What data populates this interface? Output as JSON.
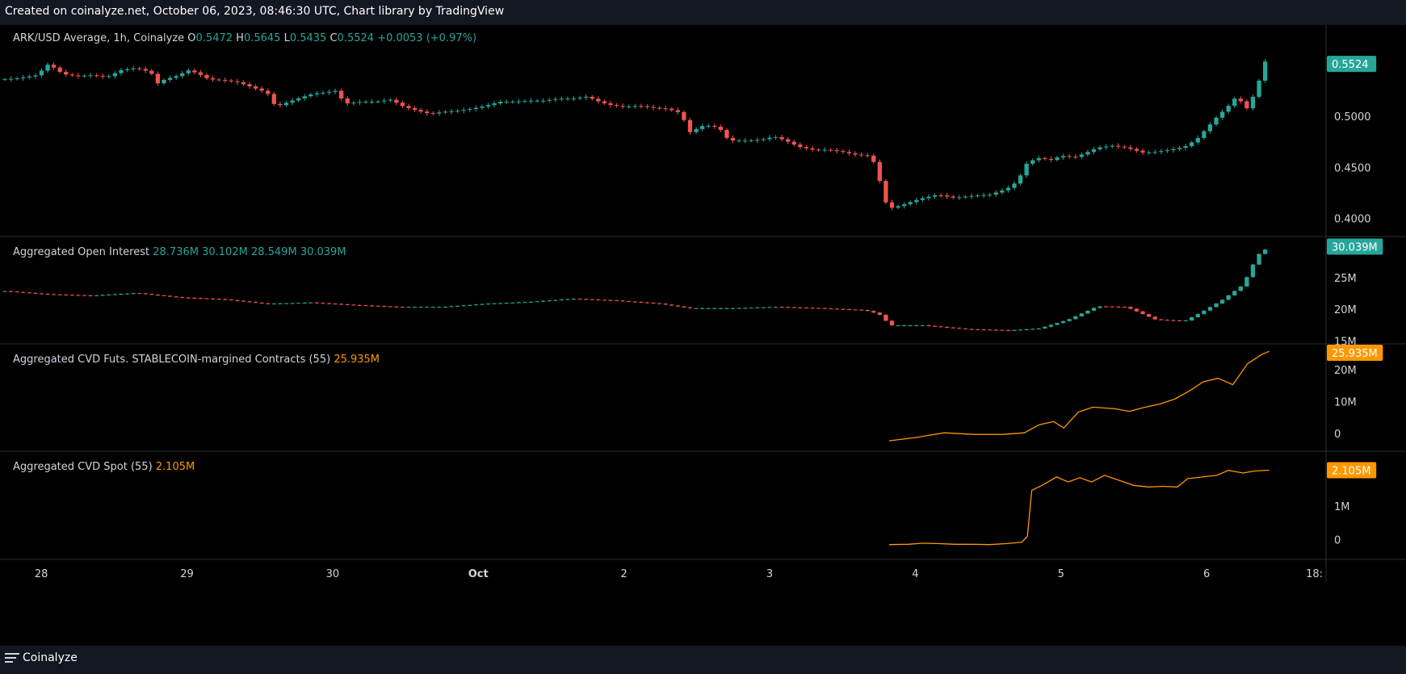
{
  "header": {
    "text": "Created on coinalyze.net, October 06, 2023, 08:46:30 UTC, Chart library by TradingView"
  },
  "footer": {
    "brand": "Coinalyze"
  },
  "colors": {
    "up": "#26a69a",
    "down": "#ef5350",
    "cvd": "#ff9800",
    "grid": "#2a2e39",
    "text": "#d1d4dc"
  },
  "chart_data": [
    {
      "type": "candlestick",
      "title": "ARK/USD Average, 1h, Coinalyze",
      "legend": {
        "o_label": "O",
        "o": "0.5472",
        "h_label": "H",
        "h": "0.5645",
        "l_label": "L",
        "l": "0.5435",
        "c_label": "C",
        "c": "0.5524",
        "change": "+0.0053 (+0.97%)"
      },
      "last_value": "0.5524",
      "y_ticks": [
        "0.5000",
        "0.4500",
        "0.4000"
      ],
      "ylim": [
        0.384,
        0.59
      ],
      "x_start": 0,
      "x_end": 8.84,
      "close_points": [
        [
          0.0,
          0.537
        ],
        [
          0.1,
          0.538
        ],
        [
          0.22,
          0.541
        ],
        [
          0.3,
          0.552
        ],
        [
          0.4,
          0.542
        ],
        [
          0.5,
          0.54
        ],
        [
          0.6,
          0.541
        ],
        [
          0.7,
          0.539
        ],
        [
          0.8,
          0.546
        ],
        [
          0.9,
          0.548
        ],
        [
          1.0,
          0.544
        ],
        [
          1.05,
          0.533
        ],
        [
          1.1,
          0.537
        ],
        [
          1.2,
          0.541
        ],
        [
          1.25,
          0.546
        ],
        [
          1.32,
          0.543
        ],
        [
          1.4,
          0.537
        ],
        [
          1.5,
          0.536
        ],
        [
          1.6,
          0.534
        ],
        [
          1.7,
          0.529
        ],
        [
          1.8,
          0.524
        ],
        [
          1.86,
          0.51
        ],
        [
          1.95,
          0.515
        ],
        [
          2.05,
          0.52
        ],
        [
          2.12,
          0.523
        ],
        [
          2.2,
          0.524
        ],
        [
          2.28,
          0.526
        ],
        [
          2.33,
          0.513
        ],
        [
          2.45,
          0.515
        ],
        [
          2.55,
          0.515
        ],
        [
          2.65,
          0.517
        ],
        [
          2.74,
          0.51
        ],
        [
          2.84,
          0.506
        ],
        [
          2.92,
          0.503
        ],
        [
          3.0,
          0.505
        ],
        [
          3.1,
          0.506
        ],
        [
          3.2,
          0.508
        ],
        [
          3.3,
          0.511
        ],
        [
          3.4,
          0.515
        ],
        [
          3.5,
          0.515
        ],
        [
          3.6,
          0.516
        ],
        [
          3.7,
          0.516
        ],
        [
          3.8,
          0.518
        ],
        [
          3.9,
          0.518
        ],
        [
          4.0,
          0.52
        ],
        [
          4.08,
          0.515
        ],
        [
          4.15,
          0.512
        ],
        [
          4.25,
          0.51
        ],
        [
          4.35,
          0.511
        ],
        [
          4.45,
          0.509
        ],
        [
          4.55,
          0.508
        ],
        [
          4.64,
          0.504
        ],
        [
          4.7,
          0.485
        ],
        [
          4.8,
          0.492
        ],
        [
          4.9,
          0.49
        ],
        [
          4.97,
          0.477
        ],
        [
          5.1,
          0.477
        ],
        [
          5.2,
          0.478
        ],
        [
          5.28,
          0.481
        ],
        [
          5.36,
          0.477
        ],
        [
          5.45,
          0.471
        ],
        [
          5.55,
          0.468
        ],
        [
          5.65,
          0.468
        ],
        [
          5.75,
          0.466
        ],
        [
          5.85,
          0.463
        ],
        [
          5.95,
          0.462
        ],
        [
          6.0,
          0.441
        ],
        [
          6.04,
          0.418
        ],
        [
          6.08,
          0.411
        ],
        [
          6.16,
          0.414
        ],
        [
          6.28,
          0.42
        ],
        [
          6.4,
          0.424
        ],
        [
          6.52,
          0.421
        ],
        [
          6.64,
          0.423
        ],
        [
          6.76,
          0.424
        ],
        [
          6.88,
          0.43
        ],
        [
          6.95,
          0.437
        ],
        [
          7.02,
          0.456
        ],
        [
          7.1,
          0.46
        ],
        [
          7.18,
          0.458
        ],
        [
          7.25,
          0.462
        ],
        [
          7.35,
          0.461
        ],
        [
          7.42,
          0.465
        ],
        [
          7.5,
          0.47
        ],
        [
          7.6,
          0.472
        ],
        [
          7.7,
          0.47
        ],
        [
          7.82,
          0.465
        ],
        [
          7.9,
          0.466
        ],
        [
          8.0,
          0.468
        ],
        [
          8.1,
          0.471
        ],
        [
          8.18,
          0.478
        ],
        [
          8.25,
          0.489
        ],
        [
          8.32,
          0.5
        ],
        [
          8.4,
          0.511
        ],
        [
          8.46,
          0.521
        ],
        [
          8.52,
          0.507
        ],
        [
          8.58,
          0.523
        ],
        [
          8.63,
          0.544
        ],
        [
          8.66,
          0.558
        ],
        [
          8.68,
          0.552
        ]
      ]
    },
    {
      "type": "candlestick",
      "title": "Aggregated Open Interest",
      "legend": {
        "o": "28.736M",
        "h": "30.102M",
        "l": "28.549M",
        "c": "30.039M"
      },
      "last_value": "30.039M",
      "y_ticks": [
        {
          "label": "25M",
          "value": 25
        },
        {
          "label": "20M",
          "value": 20
        },
        {
          "label": "15M",
          "value": 15
        }
      ],
      "ylim": [
        14.8,
        31.5
      ],
      "close_points": [
        [
          0.0,
          23.0
        ],
        [
          0.3,
          22.5
        ],
        [
          0.6,
          22.3
        ],
        [
          0.9,
          22.7
        ],
        [
          1.2,
          22.0
        ],
        [
          1.5,
          21.7
        ],
        [
          1.8,
          21.0
        ],
        [
          2.1,
          21.2
        ],
        [
          2.4,
          20.8
        ],
        [
          2.7,
          20.5
        ],
        [
          3.0,
          20.5
        ],
        [
          3.3,
          21.0
        ],
        [
          3.6,
          21.3
        ],
        [
          3.9,
          21.8
        ],
        [
          4.2,
          21.5
        ],
        [
          4.5,
          21.0
        ],
        [
          4.7,
          20.3
        ],
        [
          5.0,
          20.3
        ],
        [
          5.3,
          20.5
        ],
        [
          5.6,
          20.3
        ],
        [
          5.9,
          20.0
        ],
        [
          6.0,
          19.4
        ],
        [
          6.08,
          17.6
        ],
        [
          6.3,
          17.6
        ],
        [
          6.6,
          17.0
        ],
        [
          6.9,
          16.8
        ],
        [
          7.1,
          17.1
        ],
        [
          7.3,
          18.5
        ],
        [
          7.5,
          20.6
        ],
        [
          7.7,
          20.5
        ],
        [
          7.9,
          18.5
        ],
        [
          8.1,
          18.3
        ],
        [
          8.2,
          19.5
        ],
        [
          8.35,
          21.5
        ],
        [
          8.5,
          24.0
        ],
        [
          8.6,
          28.7
        ],
        [
          8.68,
          30.04
        ]
      ]
    },
    {
      "type": "line",
      "title": "Aggregated CVD Futs. STABLECOIN-margined Contracts (55)",
      "legend_value": "25.935M",
      "last_value": "25.935M",
      "y_ticks": [
        {
          "label": "20M",
          "value": 20
        },
        {
          "label": "10M",
          "value": 10
        },
        {
          "label": "0",
          "value": 0
        }
      ],
      "ylim": [
        -5,
        28
      ],
      "points": [
        [
          6.07,
          -2.0
        ],
        [
          6.25,
          -1.0
        ],
        [
          6.45,
          0.5
        ],
        [
          6.65,
          0.0
        ],
        [
          6.85,
          0.0
        ],
        [
          7.0,
          0.5
        ],
        [
          7.1,
          3.0
        ],
        [
          7.2,
          4.0
        ],
        [
          7.27,
          2.0
        ],
        [
          7.37,
          7.0
        ],
        [
          7.47,
          8.5
        ],
        [
          7.62,
          8.0
        ],
        [
          7.72,
          7.2
        ],
        [
          7.83,
          8.5
        ],
        [
          7.93,
          9.5
        ],
        [
          8.03,
          11.0
        ],
        [
          8.13,
          13.5
        ],
        [
          8.23,
          16.5
        ],
        [
          8.33,
          17.5
        ],
        [
          8.43,
          15.5
        ],
        [
          8.53,
          22.0
        ],
        [
          8.63,
          25.0
        ],
        [
          8.68,
          25.935
        ]
      ]
    },
    {
      "type": "line",
      "title": "Aggregated CVD Spot (55)",
      "legend_value": "2.105M",
      "last_value": "2.105M",
      "y_ticks": [
        {
          "label": "1M",
          "value": 1
        },
        {
          "label": "0",
          "value": 0
        }
      ],
      "ylim": [
        -0.55,
        2.65
      ],
      "points": [
        [
          6.07,
          -0.13
        ],
        [
          6.2,
          -0.12
        ],
        [
          6.3,
          -0.09
        ],
        [
          6.4,
          -0.1
        ],
        [
          6.52,
          -0.12
        ],
        [
          6.64,
          -0.12
        ],
        [
          6.76,
          -0.13
        ],
        [
          6.88,
          -0.1
        ],
        [
          6.98,
          -0.06
        ],
        [
          7.02,
          0.12
        ],
        [
          7.05,
          1.5
        ],
        [
          7.12,
          1.65
        ],
        [
          7.22,
          1.9
        ],
        [
          7.3,
          1.75
        ],
        [
          7.38,
          1.88
        ],
        [
          7.46,
          1.75
        ],
        [
          7.55,
          1.95
        ],
        [
          7.65,
          1.8
        ],
        [
          7.75,
          1.65
        ],
        [
          7.85,
          1.6
        ],
        [
          7.95,
          1.62
        ],
        [
          8.05,
          1.6
        ],
        [
          8.12,
          1.85
        ],
        [
          8.22,
          1.9
        ],
        [
          8.32,
          1.95
        ],
        [
          8.4,
          2.1
        ],
        [
          8.5,
          2.02
        ],
        [
          8.58,
          2.08
        ],
        [
          8.68,
          2.105
        ]
      ]
    }
  ],
  "x_axis": {
    "ticks": [
      {
        "label": "28",
        "value": 0.25,
        "bold": false
      },
      {
        "label": "29",
        "value": 1.25,
        "bold": false
      },
      {
        "label": "30",
        "value": 2.25,
        "bold": false
      },
      {
        "label": "Oct",
        "value": 3.25,
        "bold": true
      },
      {
        "label": "2",
        "value": 4.25,
        "bold": false
      },
      {
        "label": "3",
        "value": 5.25,
        "bold": false
      },
      {
        "label": "4",
        "value": 6.25,
        "bold": false
      },
      {
        "label": "5",
        "value": 7.25,
        "bold": false
      },
      {
        "label": "6",
        "value": 8.25,
        "bold": false
      },
      {
        "label": "18:",
        "value": 8.99,
        "bold": false
      }
    ]
  }
}
